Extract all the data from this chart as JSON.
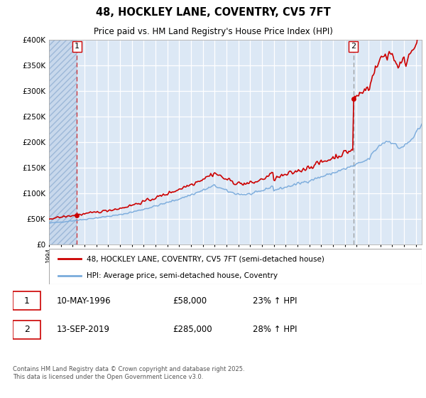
{
  "title": "48, HOCKLEY LANE, COVENTRY, CV5 7FT",
  "subtitle": "Price paid vs. HM Land Registry's House Price Index (HPI)",
  "property_label": "48, HOCKLEY LANE, COVENTRY, CV5 7FT (semi-detached house)",
  "hpi_label": "HPI: Average price, semi-detached house, Coventry",
  "footnote": "Contains HM Land Registry data © Crown copyright and database right 2025.\nThis data is licensed under the Open Government Licence v3.0.",
  "sale1_date": "10-MAY-1996",
  "sale1_price": "£58,000",
  "sale1_hpi": "23% ↑ HPI",
  "sale2_date": "13-SEP-2019",
  "sale2_price": "£285,000",
  "sale2_hpi": "28% ↑ HPI",
  "line_color_property": "#cc0000",
  "line_color_hpi": "#7aabdc",
  "vline_color": "#cc0000",
  "marker_color": "#cc0000",
  "ylim": [
    0,
    400000
  ],
  "xlim_start": 1994.0,
  "xlim_end": 2025.5,
  "sale1_x": 1996.36,
  "sale1_y": 58000,
  "sale2_x": 2019.71,
  "sale2_y": 285000
}
